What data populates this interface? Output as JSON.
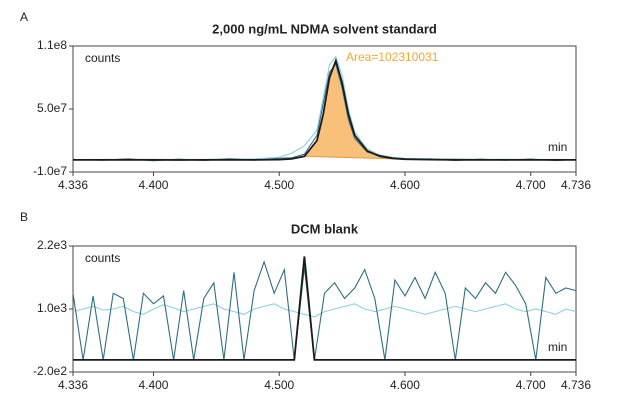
{
  "chart_data": [
    {
      "type": "line",
      "panel_label": "A",
      "title": "2,000 ng/mL NDMA solvent standard",
      "y_label": "counts",
      "x_label": "min",
      "annotation": "Area=102310031",
      "xlim": [
        4.336,
        4.736
      ],
      "xticks": [
        4.336,
        {
          "value": 4.4,
          "label": "4.400"
        },
        {
          "value": 4.5,
          "label": "4.500"
        },
        {
          "value": 4.6,
          "label": "4.600"
        },
        {
          "value": 4.7,
          "label": "4.700"
        },
        4.736
      ],
      "ylim": [
        -10000000,
        110000000
      ],
      "yticks": [
        {
          "value": 110000000,
          "label": "1.1e8"
        },
        {
          "value": 50000000,
          "label": "5.0e7"
        },
        {
          "value": -10000000,
          "label": "-1.0e7"
        }
      ],
      "x": [
        4.336,
        4.36,
        4.38,
        4.4,
        4.42,
        4.44,
        4.46,
        4.48,
        4.5,
        4.51,
        4.52,
        4.53,
        4.535,
        4.54,
        4.545,
        4.55,
        4.555,
        4.56,
        4.57,
        4.58,
        4.59,
        4.6,
        4.62,
        4.64,
        4.66,
        4.68,
        4.7,
        4.72,
        4.736
      ],
      "series": [
        {
          "color": "#f7b560",
          "fill": true,
          "values": [
            null,
            null,
            null,
            null,
            null,
            null,
            null,
            null,
            null,
            null,
            5000000,
            20000000,
            45000000,
            80000000,
            96000000,
            75000000,
            45000000,
            25000000,
            10000000,
            5000000,
            3000000,
            2200000,
            null,
            null,
            null,
            null,
            null,
            null,
            null
          ]
        },
        {
          "color": "#8ccfe0",
          "values": [
            1800000,
            2000000,
            1700000,
            2100000,
            1900000,
            2000000,
            2200000,
            2500000,
            4000000,
            8000000,
            15000000,
            30000000,
            60000000,
            92000000,
            100000000,
            82000000,
            50000000,
            28000000,
            12000000,
            6000000,
            4000000,
            3000000,
            2500000,
            2200000,
            2000000,
            2100000,
            1900000,
            2000000,
            1800000
          ]
        },
        {
          "color": "#2e6f80",
          "values": [
            2000000,
            1200000,
            2500000,
            800000,
            2200000,
            1000000,
            2600000,
            1200000,
            3000000,
            3500000,
            7000000,
            25000000,
            55000000,
            85000000,
            93000000,
            70000000,
            40000000,
            22000000,
            9000000,
            6000000,
            3500000,
            2000000,
            2500000,
            1000000,
            2200000,
            1200000,
            2400000,
            900000,
            2000000
          ]
        },
        {
          "color": "#1a1a1a",
          "values": [
            1500000,
            1500000,
            1600000,
            1500000,
            1400000,
            1500000,
            1600000,
            1500000,
            1800000,
            2500000,
            5000000,
            20000000,
            45000000,
            80000000,
            96000000,
            75000000,
            45000000,
            25000000,
            10000000,
            5000000,
            3000000,
            2200000,
            1800000,
            1600000,
            1500000,
            1500000,
            1500000,
            1500000,
            1500000
          ]
        }
      ]
    },
    {
      "type": "line",
      "panel_label": "B",
      "title": "DCM blank",
      "y_label": "counts",
      "x_label": "min",
      "xlim": [
        4.336,
        4.736
      ],
      "xticks": [
        4.336,
        {
          "value": 4.4,
          "label": "4.400"
        },
        {
          "value": 4.5,
          "label": "4.500"
        },
        {
          "value": 4.6,
          "label": "4.600"
        },
        {
          "value": 4.7,
          "label": "4.700"
        },
        4.736
      ],
      "ylim": [
        -200,
        2200
      ],
      "yticks": [
        {
          "value": 2200,
          "label": "2.2e3"
        },
        {
          "value": 1000,
          "label": "1.0e3"
        },
        {
          "value": -200,
          "label": "-2.0e2"
        }
      ],
      "x": [
        4.336,
        4.344,
        4.352,
        4.36,
        4.368,
        4.376,
        4.384,
        4.392,
        4.4,
        4.408,
        4.416,
        4.424,
        4.432,
        4.44,
        4.448,
        4.456,
        4.464,
        4.472,
        4.48,
        4.488,
        4.496,
        4.504,
        4.512,
        4.52,
        4.528,
        4.536,
        4.544,
        4.552,
        4.56,
        4.568,
        4.576,
        4.584,
        4.592,
        4.6,
        4.608,
        4.616,
        4.624,
        4.632,
        4.64,
        4.648,
        4.656,
        4.664,
        4.672,
        4.68,
        4.688,
        4.696,
        4.704,
        4.712,
        4.72,
        4.728,
        4.736
      ],
      "series": [
        {
          "color": "#8ccfe0",
          "values": [
            950,
            1000,
            1050,
            980,
            1000,
            1050,
            950,
            900,
            1000,
            1080,
            1020,
            950,
            1000,
            1050,
            1100,
            1000,
            950,
            900,
            1000,
            1050,
            1100,
            1000,
            950,
            900,
            850,
            950,
            1000,
            1050,
            1100,
            1000,
            950,
            1000,
            1050,
            1000,
            950,
            900,
            950,
            1000,
            1050,
            1000,
            950,
            1000,
            1050,
            1100,
            1000,
            950,
            1000,
            950,
            900,
            1000,
            950
          ]
        },
        {
          "color": "#2e6f80",
          "values": [
            1300,
            30,
            1250,
            30,
            1300,
            1200,
            30,
            1300,
            1100,
            1250,
            30,
            1350,
            30,
            1200,
            1500,
            30,
            1700,
            30,
            1350,
            1900,
            1300,
            1750,
            30,
            1800,
            30,
            1300,
            1500,
            1200,
            1400,
            1750,
            1200,
            30,
            1550,
            1250,
            1600,
            1200,
            1700,
            1300,
            30,
            1400,
            1200,
            1500,
            1300,
            1700,
            1450,
            1100,
            30,
            1600,
            1300,
            1400,
            1350
          ]
        },
        {
          "color": "#1a1a1a",
          "values": [
            30,
            30,
            30,
            30,
            30,
            30,
            30,
            30,
            30,
            30,
            30,
            30,
            30,
            30,
            30,
            30,
            30,
            30,
            30,
            30,
            30,
            30,
            30,
            2000,
            30,
            30,
            30,
            30,
            30,
            30,
            30,
            30,
            30,
            30,
            30,
            30,
            30,
            30,
            30,
            30,
            30,
            30,
            30,
            30,
            30,
            30,
            30,
            30,
            30,
            30,
            30
          ]
        }
      ]
    }
  ]
}
